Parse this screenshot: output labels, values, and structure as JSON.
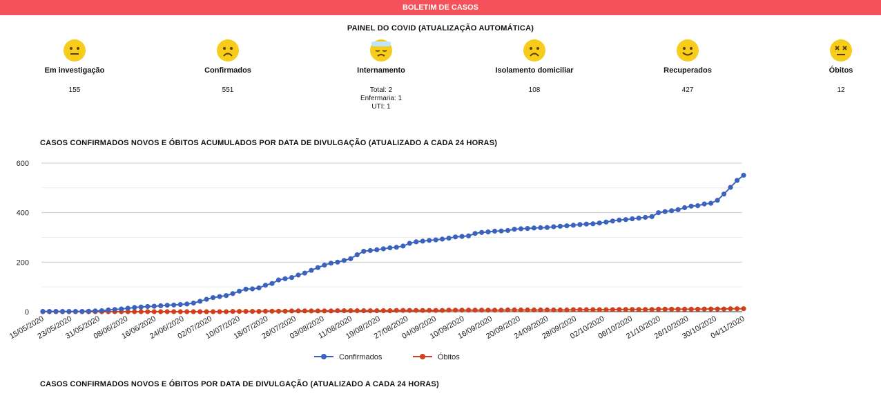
{
  "header": {
    "title": "BOLETIM DE CASOS"
  },
  "panel": {
    "title": "PAINEL DO COVID (ATUALIZAÇÃO AUTOMÁTICA)",
    "cards": [
      {
        "icon": "neutral-face-icon",
        "label": "Em investigação",
        "value": "155"
      },
      {
        "icon": "sad-face-icon",
        "label": "Confirmados",
        "value": "551"
      },
      {
        "icon": "bandaged-face-icon",
        "label": "Internamento",
        "lines": [
          "Total: 2",
          "Enfermaria: 1",
          "UTI: 1"
        ]
      },
      {
        "icon": "sad-face-icon",
        "label": "Isolamento domiciliar",
        "value": "108"
      },
      {
        "icon": "smiling-face-icon",
        "label": "Recuperados",
        "value": "427"
      },
      {
        "icon": "dizzy-face-icon",
        "label": "Óbitos",
        "value": "12"
      }
    ]
  },
  "colors": {
    "header": "#f5515a",
    "face": "#f7cc1b",
    "confirmados": "#3b63bd",
    "obitos": "#d0401d",
    "grid": "#cccccc"
  },
  "chart_data": {
    "type": "line",
    "title": "CASOS CONFIRMADOS NOVOS E ÓBITOS ACUMULADOS POR DATA DE DIVULGAÇÃO (ATUALIZADO A CADA 24 HORAS)",
    "xlabel": "",
    "ylabel": "",
    "ylim": [
      0,
      600
    ],
    "yticks": [
      0,
      200,
      400,
      600
    ],
    "grid": true,
    "legend": "bottom",
    "x_tick_labels": [
      "15/05/2020",
      "23/05/2020",
      "31/05/2020",
      "08/06/2020",
      "16/06/2020",
      "24/06/2020",
      "02/07/2020",
      "10/07/2020",
      "18/07/2020",
      "26/07/2020",
      "03/08/2020",
      "11/08/2020",
      "19/08/2020",
      "27/08/2020",
      "04/09/2020",
      "10/09/2020",
      "16/09/2020",
      "20/09/2020",
      "24/09/2020",
      "28/09/2020",
      "02/10/2020",
      "06/10/2020",
      "21/10/2020",
      "26/10/2020",
      "30/10/2020",
      "04/11/2020"
    ],
    "series": [
      {
        "name": "Confirmados",
        "values": [
          1,
          1,
          1,
          1,
          1,
          1,
          1,
          2,
          3,
          4,
          7,
          9,
          11,
          14,
          17,
          19,
          21,
          22,
          24,
          26,
          27,
          29,
          31,
          35,
          42,
          50,
          57,
          61,
          65,
          73,
          83,
          91,
          92,
          96,
          107,
          114,
          128,
          133,
          138,
          148,
          156,
          167,
          178,
          188,
          196,
          200,
          207,
          214,
          230,
          244,
          247,
          250,
          254,
          258,
          260,
          265,
          276,
          282,
          285,
          288,
          290,
          293,
          297,
          302,
          304,
          306,
          316,
          320,
          322,
          325,
          326,
          328,
          333,
          335,
          336,
          338,
          339,
          340,
          343,
          345,
          347,
          349,
          352,
          354,
          355,
          358,
          362,
          366,
          370,
          372,
          375,
          378,
          381,
          384,
          400,
          404,
          408,
          412,
          420,
          426,
          428,
          435,
          438,
          450,
          475,
          502,
          530,
          551
        ]
      },
      {
        "name": "Óbitos",
        "values": [
          0,
          0,
          0,
          0,
          0,
          0,
          0,
          0,
          0,
          0,
          0,
          0,
          0,
          0,
          0,
          0,
          0,
          0,
          0,
          0,
          0,
          0,
          0,
          0,
          0,
          0,
          0,
          0,
          0,
          1,
          1,
          1,
          1,
          1,
          2,
          2,
          2,
          2,
          3,
          3,
          3,
          3,
          3,
          3,
          3,
          4,
          4,
          4,
          4,
          4,
          4,
          4,
          4,
          4,
          5,
          5,
          5,
          5,
          5,
          5,
          5,
          5,
          6,
          6,
          6,
          6,
          6,
          6,
          6,
          6,
          6,
          7,
          7,
          7,
          7,
          7,
          7,
          7,
          7,
          7,
          7,
          8,
          8,
          8,
          8,
          8,
          8,
          8,
          9,
          9,
          9,
          9,
          9,
          9,
          10,
          10,
          10,
          10,
          10,
          10,
          10,
          11,
          11,
          11,
          11,
          12,
          12,
          12
        ]
      }
    ]
  },
  "chart2": {
    "title": "CASOS CONFIRMADOS NOVOS E ÓBITOS POR DATA DE DIVULGAÇÃO (ATUALIZADO A CADA 24 HORAS)"
  }
}
